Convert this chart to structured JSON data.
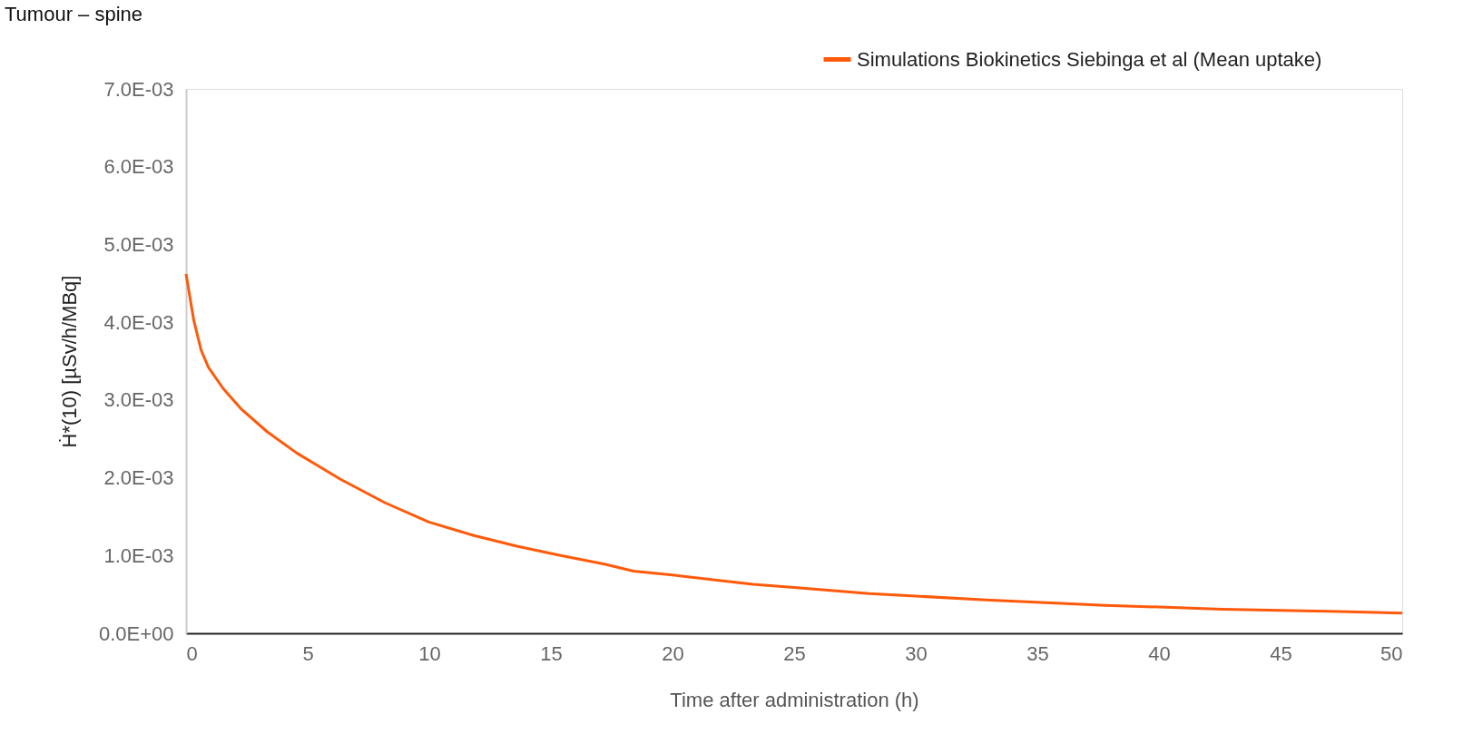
{
  "chart_data": {
    "type": "line",
    "title": "Tumour – spine",
    "xlabel": "Time after administration (h)",
    "ylabel": "Ḣ*(10) [µSv/h/MBq]",
    "xlim": [
      0,
      50
    ],
    "xticks": [
      0,
      5,
      10,
      15,
      20,
      25,
      30,
      35,
      40,
      45,
      50
    ],
    "ylim": [
      0,
      0.007
    ],
    "yticks": [
      {
        "value": 0,
        "label": "0.0E+00"
      },
      {
        "value": 0.001,
        "label": "1.0E-03"
      },
      {
        "value": 0.002,
        "label": "2.0E-03"
      },
      {
        "value": 0.003,
        "label": "3.0E-03"
      },
      {
        "value": 0.004,
        "label": "4.0E-03"
      },
      {
        "value": 0.005,
        "label": "5.0E-03"
      },
      {
        "value": 0.006,
        "label": "6.0E-03"
      },
      {
        "value": 0.007,
        "label": "7.0E-03"
      }
    ],
    "grid": false,
    "legend": "top right",
    "marker": "none",
    "line_style": "solid",
    "series": [
      {
        "name": "Simulations Biokinetics Siebinga et al (Mean uptake)",
        "color": "#ff5a0a",
        "x": [
          0,
          0.32,
          0.62,
          0.92,
          1.52,
          2.25,
          3.34,
          4.54,
          6.35,
          8.17,
          9.98,
          11.8,
          13.6,
          15.4,
          17.2,
          18.4,
          20,
          23.3,
          25,
          28.1,
          32.9,
          37.8,
          42.6,
          47.4,
          50
        ],
        "values": [
          0.00462,
          0.00402,
          0.00364,
          0.00342,
          0.00315,
          0.00289,
          0.00259,
          0.00232,
          0.00198,
          0.00168,
          0.00143,
          0.00126,
          0.00112,
          0.001,
          0.00089,
          0.0008,
          0.00075,
          0.00063,
          0.00059,
          0.00051,
          0.00043,
          0.00036,
          0.00031,
          0.00028,
          0.00026
        ]
      }
    ]
  }
}
